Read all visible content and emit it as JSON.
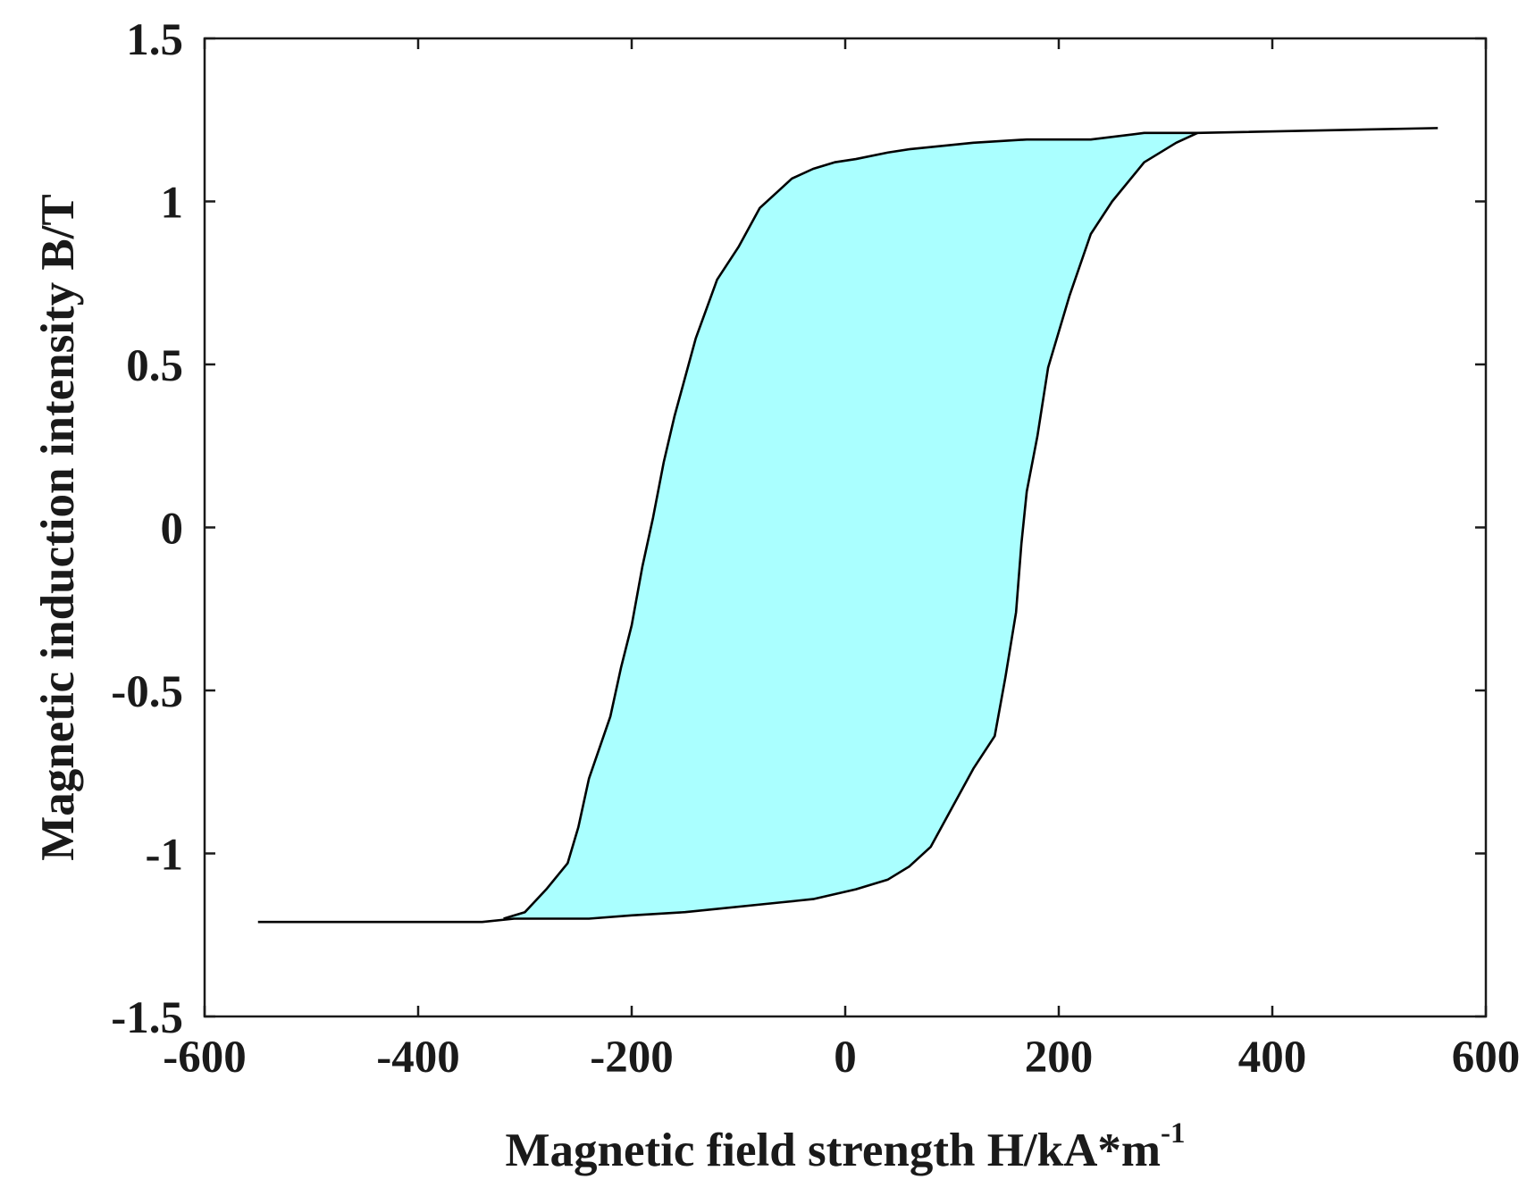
{
  "chart_data": {
    "type": "area",
    "title": "",
    "xlabel": {
      "base": "Magnetic field strength H/kA*m",
      "superscript": "-1"
    },
    "ylabel": "Magnetic induction intensity B/T",
    "xlim": [
      -600,
      600
    ],
    "ylim": [
      -1.5,
      1.5
    ],
    "xticks": [
      -600,
      -400,
      -200,
      0,
      200,
      400,
      600
    ],
    "yticks": [
      -1.5,
      -1,
      -0.5,
      0,
      0.5,
      1,
      1.5
    ],
    "xtick_labels": [
      "-600",
      "-400",
      "-200",
      "0",
      "200",
      "400",
      "600"
    ],
    "ytick_labels": [
      "-1.5",
      "-1",
      "-0.5",
      "0",
      "0.5",
      "1",
      "1.5"
    ],
    "grid": false,
    "fill_color": "#aaffff",
    "line_color": "#000000",
    "series": [
      {
        "id": "descending-branch",
        "x": [
          555,
          330,
          280,
          230,
          170,
          120,
          60,
          40,
          10,
          -10,
          -30,
          -50,
          -60,
          -80,
          -100,
          -120,
          -140,
          -150,
          -160,
          -170,
          -180,
          -190,
          -200,
          -210,
          -220,
          -240,
          -250,
          -260,
          -280,
          -300,
          -320
        ],
        "y": [
          1.225,
          1.21,
          1.21,
          1.19,
          1.19,
          1.18,
          1.16,
          1.15,
          1.13,
          1.12,
          1.1,
          1.07,
          1.04,
          0.98,
          0.86,
          0.76,
          0.58,
          0.46,
          0.34,
          0.2,
          0.03,
          -0.12,
          -0.3,
          -0.43,
          -0.58,
          -0.77,
          -0.92,
          -1.03,
          -1.11,
          -1.18,
          -1.2
        ]
      },
      {
        "id": "ascending-branch",
        "x": [
          -550,
          -340,
          -310,
          -240,
          -200,
          -150,
          -60,
          -30,
          10,
          40,
          60,
          80,
          100,
          110,
          120,
          140,
          150,
          160,
          165,
          170,
          180,
          190,
          200,
          210,
          230,
          250,
          270,
          280,
          310,
          330
        ],
        "y": [
          -1.21,
          -1.21,
          -1.2,
          -1.2,
          -1.19,
          -1.18,
          -1.15,
          -1.14,
          -1.11,
          -1.08,
          -1.04,
          -0.98,
          -0.86,
          -0.8,
          -0.74,
          -0.64,
          -0.46,
          -0.26,
          -0.05,
          0.11,
          0.28,
          0.49,
          0.6,
          0.71,
          0.9,
          1.0,
          1.08,
          1.12,
          1.18,
          1.21
        ]
      }
    ]
  }
}
